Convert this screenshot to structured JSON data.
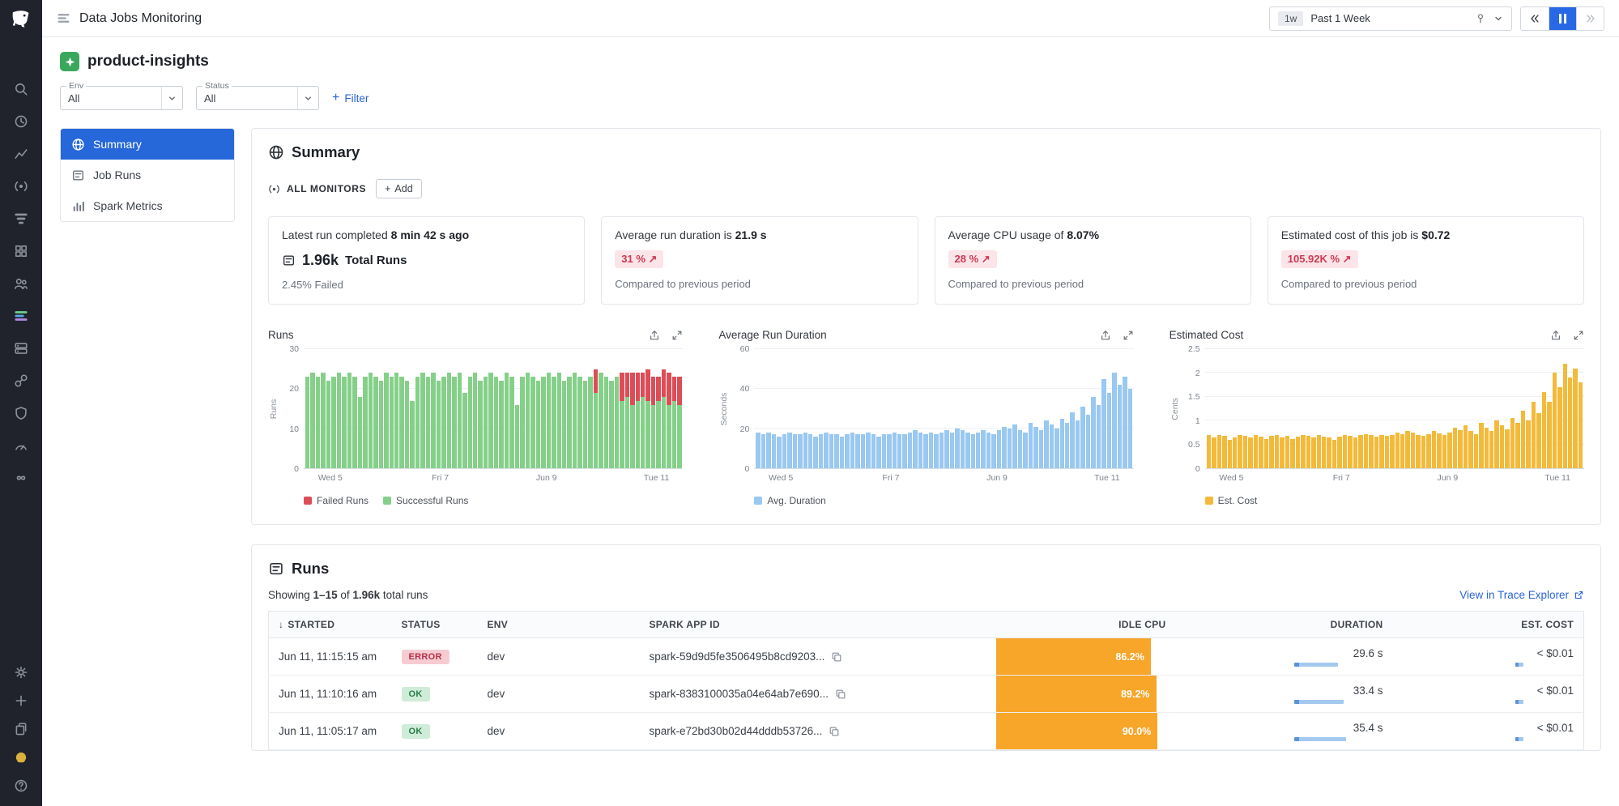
{
  "topbar": {
    "title": "Data Jobs Monitoring",
    "time": {
      "chip": "1w",
      "label": "Past 1 Week"
    }
  },
  "rail": {
    "top_icons": [
      "search",
      "history",
      "metrics",
      "monitors",
      "apm",
      "integrations",
      "users",
      "data-jobs",
      "infrastructure",
      "connections",
      "security",
      "dashboards",
      "ci"
    ],
    "bottom_icons": [
      "settings",
      "plus",
      "docs",
      "bits-ai",
      "help"
    ]
  },
  "header": {
    "title": "product-insights",
    "filters": {
      "env_label": "Env",
      "env_value": "All",
      "status_label": "Status",
      "status_value": "All",
      "add_filter_label": "Filter"
    }
  },
  "nav": {
    "items": [
      {
        "label": "Summary",
        "active": true
      },
      {
        "label": "Job Runs",
        "active": false
      },
      {
        "label": "Spark Metrics",
        "active": false
      }
    ]
  },
  "summary": {
    "title": "Summary",
    "monitors_label": "ALL MONITORS",
    "add_label": "Add",
    "cards": [
      {
        "line1_prefix": "Latest run completed ",
        "line1_bold": "8 min 42 s ago",
        "big_value": "1.96k",
        "big_label": "Total Runs",
        "sub": "2.45% Failed"
      },
      {
        "line1_prefix": "Average run duration is ",
        "line1_bold": "21.9 s",
        "badge": "31 % ↗",
        "sub": "Compared to previous period"
      },
      {
        "line1_prefix": "Average CPU usage of ",
        "line1_bold": "8.07%",
        "badge": "28 % ↗",
        "sub": "Compared to previous period"
      },
      {
        "line1_prefix": "Estimated cost of this job is ",
        "line1_bold": "$0.72",
        "badge": "105.92K % ↗",
        "sub": "Compared to previous period"
      }
    ]
  },
  "chart_data": [
    {
      "type": "bar",
      "stacked": true,
      "title": "Runs",
      "ylabel": "Runs",
      "ylim": [
        0,
        30
      ],
      "yticks": [
        0,
        10,
        20,
        30
      ],
      "xticklabels": [
        "Wed 5",
        "Fri 7",
        "Jun 9",
        "Tue 11"
      ],
      "legend": [
        {
          "label": "Failed Runs",
          "color": "#dd4d57"
        },
        {
          "label": "Successful Runs",
          "color": "#85d089"
        }
      ],
      "series": [
        {
          "name": "Successful Runs",
          "color": "#85d089",
          "values": [
            23,
            24,
            23,
            24,
            22,
            23,
            24,
            23,
            24,
            23,
            18,
            23,
            24,
            23,
            22,
            24,
            23,
            24,
            23,
            22,
            17,
            23,
            24,
            23,
            24,
            22,
            23,
            24,
            23,
            24,
            19,
            23,
            24,
            22,
            23,
            24,
            23,
            22,
            24,
            23,
            16,
            23,
            24,
            23,
            22,
            23,
            24,
            23,
            24,
            22,
            23,
            24,
            23,
            22,
            23,
            19,
            24,
            23,
            22,
            23,
            17,
            18,
            16,
            17,
            18,
            17,
            16,
            17,
            18,
            16,
            17,
            16
          ]
        },
        {
          "name": "Failed Runs",
          "color": "#dd4d57",
          "values": [
            0,
            0,
            0,
            0,
            0,
            0,
            0,
            0,
            0,
            0,
            0,
            0,
            0,
            0,
            0,
            0,
            0,
            0,
            0,
            0,
            0,
            0,
            0,
            0,
            0,
            0,
            0,
            0,
            0,
            0,
            0,
            0,
            0,
            0,
            0,
            0,
            0,
            0,
            0,
            0,
            0,
            0,
            0,
            0,
            0,
            0,
            0,
            0,
            0,
            0,
            0,
            0,
            0,
            0,
            0,
            6,
            0,
            0,
            0,
            0,
            7,
            6,
            8,
            7,
            6,
            8,
            7,
            6,
            7,
            8,
            6,
            7
          ]
        }
      ]
    },
    {
      "type": "bar",
      "stacked": false,
      "title": "Average Run Duration",
      "ylabel": "Seconds",
      "ylim": [
        0,
        60
      ],
      "yticks": [
        0,
        20,
        40,
        60
      ],
      "xticklabels": [
        "Wed 5",
        "Fri 7",
        "Jun 9",
        "Tue 11"
      ],
      "legend": [
        {
          "label": "Avg. Duration",
          "color": "#99c8f1"
        }
      ],
      "series": [
        {
          "name": "Avg. Duration",
          "color": "#99c8f1",
          "values": [
            18,
            17,
            18,
            17,
            16,
            17,
            18,
            17,
            17,
            18,
            17,
            16,
            17,
            18,
            17,
            17,
            16,
            17,
            18,
            17,
            17,
            18,
            17,
            16,
            17,
            17,
            18,
            17,
            17,
            18,
            19,
            18,
            17,
            18,
            17,
            18,
            19,
            18,
            20,
            19,
            18,
            17,
            18,
            19,
            18,
            17,
            19,
            21,
            20,
            22,
            19,
            18,
            23,
            21,
            19,
            24,
            22,
            20,
            25,
            23,
            28,
            24,
            31,
            27,
            36,
            32,
            45,
            38,
            48,
            42,
            46,
            40
          ]
        }
      ]
    },
    {
      "type": "bar",
      "stacked": false,
      "title": "Estimated Cost",
      "ylabel": "Cents",
      "ylim": [
        0,
        2.5
      ],
      "yticks": [
        0,
        0.5,
        1,
        1.5,
        2,
        2.5
      ],
      "xticklabels": [
        "Wed 5",
        "Fri 7",
        "Jun 9",
        "Tue 11"
      ],
      "legend": [
        {
          "label": "Est. Cost",
          "color": "#f3ba3a"
        }
      ],
      "series": [
        {
          "name": "Est. Cost",
          "color": "#f3ba3a",
          "values": [
            0.7,
            0.65,
            0.7,
            0.68,
            0.6,
            0.65,
            0.7,
            0.68,
            0.65,
            0.7,
            0.66,
            0.62,
            0.68,
            0.7,
            0.65,
            0.68,
            0.62,
            0.66,
            0.7,
            0.68,
            0.65,
            0.7,
            0.66,
            0.64,
            0.6,
            0.66,
            0.7,
            0.68,
            0.65,
            0.7,
            0.72,
            0.7,
            0.66,
            0.7,
            0.68,
            0.7,
            0.75,
            0.72,
            0.78,
            0.75,
            0.7,
            0.68,
            0.72,
            0.78,
            0.73,
            0.7,
            0.75,
            0.85,
            0.8,
            0.9,
            0.78,
            0.72,
            0.95,
            0.85,
            0.78,
            1.0,
            0.9,
            0.82,
            1.05,
            0.95,
            1.2,
            1.0,
            1.4,
            1.15,
            1.6,
            1.4,
            2.0,
            1.7,
            2.2,
            1.9,
            2.1,
            1.8
          ]
        }
      ]
    }
  ],
  "runs_table": {
    "title": "Runs",
    "showing": {
      "prefix": "Showing ",
      "range": "1–15",
      "mid": " of ",
      "total": "1.96k",
      "suffix": " total runs"
    },
    "link_label": "View in Trace Explorer",
    "columns": {
      "started": "STARTED",
      "status": "STATUS",
      "env": "ENV",
      "app_id": "SPARK APP ID",
      "idle_cpu": "IDLE CPU",
      "duration": "DURATION",
      "cost": "EST. COST"
    },
    "rows": [
      {
        "started": "Jun 11, 11:15:15 am",
        "status": "ERROR",
        "status_type": "error",
        "env": "dev",
        "app_id": "spark-59d9d5fe3506495b8cd9203...",
        "idle_cpu": "86.2%",
        "idle_cpu_pct": 86.2,
        "duration": "29.6 s",
        "duration_s": 29.6,
        "cost": "< $0.01"
      },
      {
        "started": "Jun 11, 11:10:16 am",
        "status": "OK",
        "status_type": "ok",
        "env": "dev",
        "app_id": "spark-8383100035a04e64ab7e690...",
        "idle_cpu": "89.2%",
        "idle_cpu_pct": 89.2,
        "duration": "33.4 s",
        "duration_s": 33.4,
        "cost": "< $0.01"
      },
      {
        "started": "Jun 11, 11:05:17 am",
        "status": "OK",
        "status_type": "ok",
        "env": "dev",
        "app_id": "spark-e72bd30b02d44dddb53726...",
        "idle_cpu": "90.0%",
        "idle_cpu_pct": 90.0,
        "duration": "35.4 s",
        "duration_s": 35.4,
        "cost": "< $0.01"
      }
    ]
  }
}
